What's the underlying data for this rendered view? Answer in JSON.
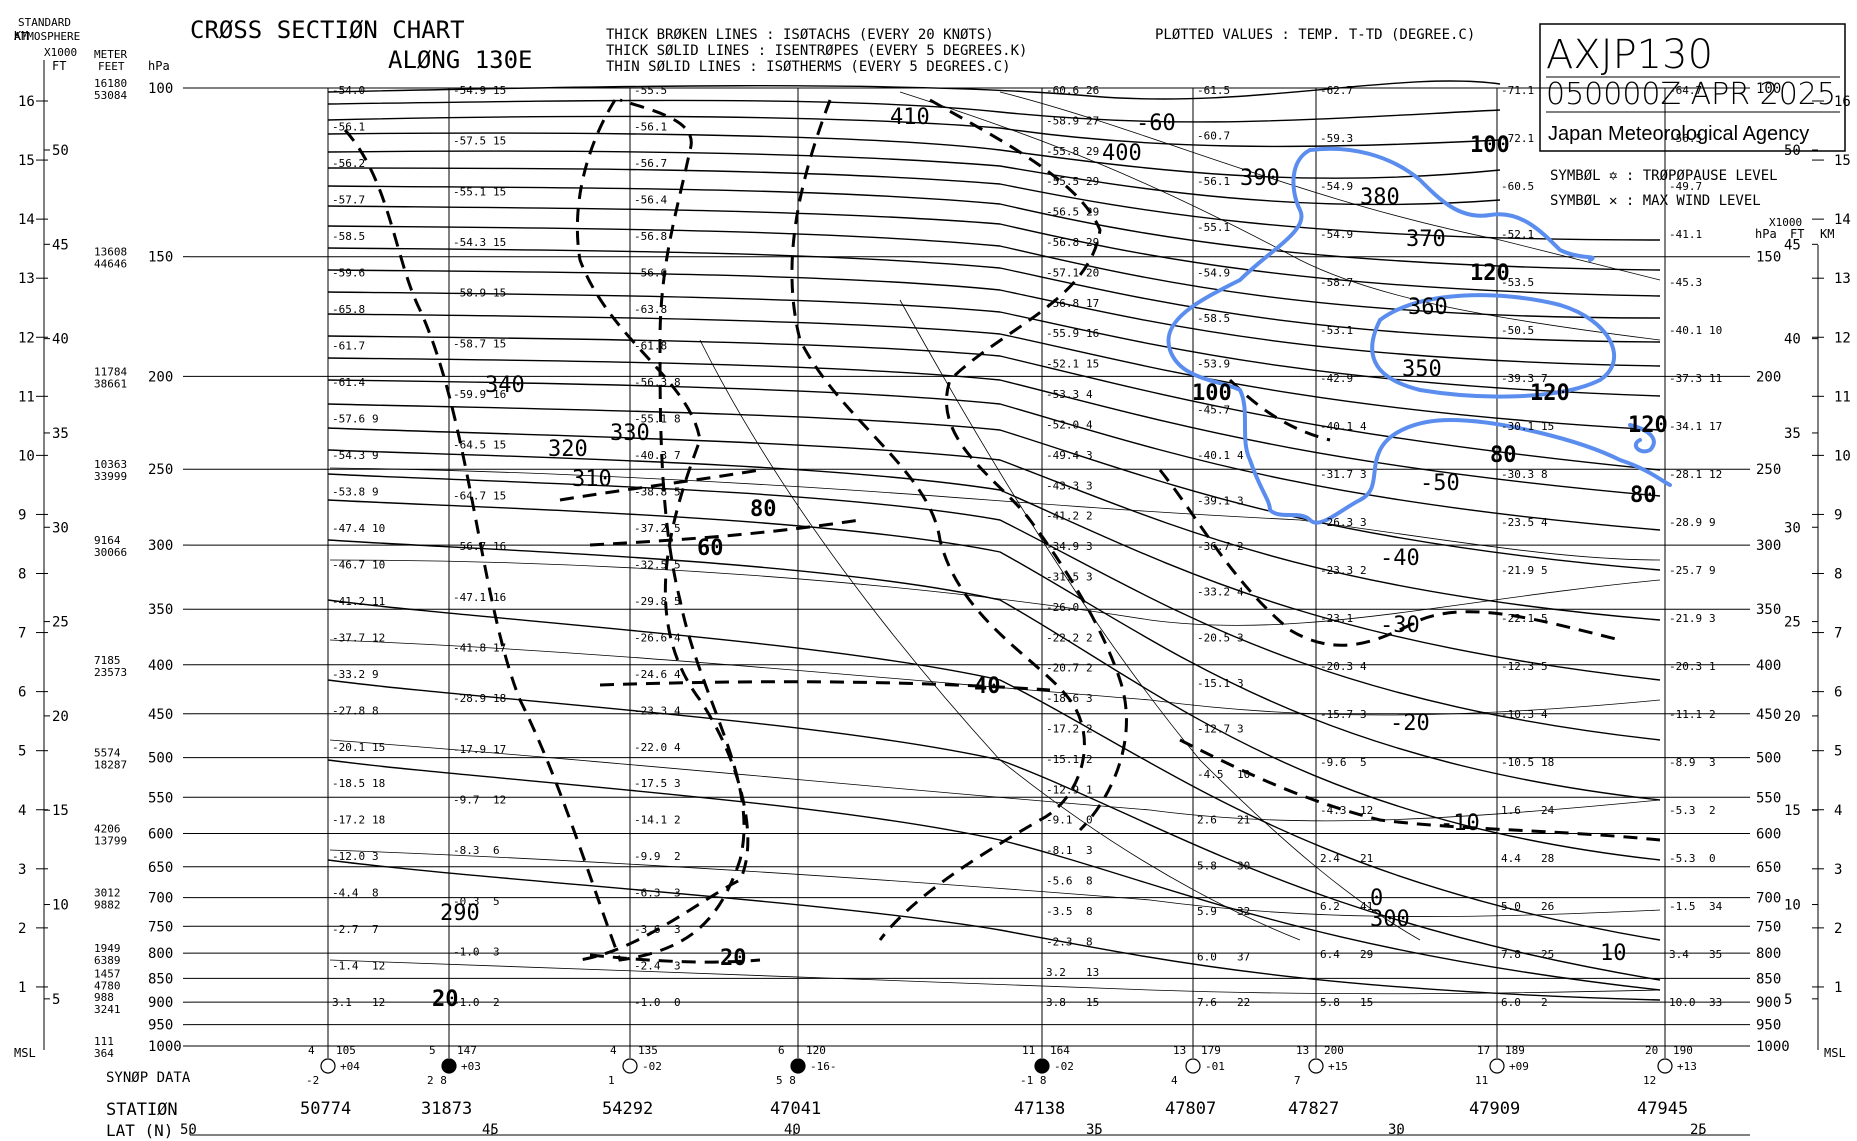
{
  "header": {
    "atmosphere_label": "STANDARD\nATMOSPHERE",
    "atmosphere_l1": "STANDARD",
    "atmosphere_l2": "ATMOSPHERE",
    "title_line1": "CRØSS SECTIØN CHART",
    "title_line2": "ALØNG 130E",
    "legend_lines": [
      "THICK BRØKEN LINES : ISØTACHS    (EVERY 20 KNØTS)",
      "THICK SØLID  LINES : ISENTRØPES (EVERY  5 DEGREES.K)",
      "THIN  SØLID  LINES : ISØTHERMS  (EVERY  5 DEGREES.C)"
    ],
    "plotted_values": "PLØTTED VALUES : TEMP. T-TD (DEGREE.C)",
    "chart_id": "AXJP130",
    "valid_time": "050000Z APR 2025",
    "agency": "Japan Meteorological Agency",
    "symbol_tropopause": "SYMBØL ✡ : TRØPØPAUSE LEVEL",
    "symbol_maxwind": "SYMBØL ✕ : MAX WIND   LEVEL"
  },
  "axes": {
    "km_label": "KM",
    "ft_label": "FT",
    "x1000_label": "X1000",
    "meter_label": "METER",
    "feet_label": "FEET",
    "hpa_label": "hPa",
    "msl_label": "MSL",
    "synop_label": "SYNØP DATA",
    "station_label": "STATIØN",
    "lat_label": "LAT (N)"
  },
  "chart_data": {
    "type": "table",
    "pressure_levels_hpa": [
      100,
      150,
      200,
      250,
      300,
      350,
      400,
      450,
      500,
      550,
      600,
      650,
      700,
      750,
      800,
      850,
      900,
      950,
      1000
    ],
    "height_m": {
      "100": 16180,
      "150": 13608,
      "200": 11784,
      "250": 10363,
      "300": 9164,
      "400": 7185,
      "500": 5574,
      "600": 4206,
      "700": 3012,
      "800": 1949,
      "850": 1457,
      "900": 988,
      "1000": 111
    },
    "height_ft": {
      "100": 53084,
      "150": 44646,
      "200": 38661,
      "250": 33999,
      "300": 30066,
      "400": 23573,
      "500": 18287,
      "600": 13799,
      "700": 9882,
      "800": 6389,
      "850": 4780,
      "900": 3241,
      "1000": 364
    },
    "km_ticks": [
      "16",
      "15",
      "14",
      "13",
      "12",
      "11",
      "10",
      "9",
      "8",
      "7",
      "6",
      "5",
      "4",
      "3",
      "2",
      "1",
      "MSL"
    ],
    "ft_ticks": [
      "50",
      "45",
      "40",
      "35",
      "30",
      "25",
      "20",
      "15",
      "10",
      "5"
    ],
    "stations": [
      {
        "id": "50774",
        "synop_top": "4",
        "synop_val": "105",
        "synop_tend": "+04",
        "synop_bot": "-2"
      },
      {
        "id": "31873",
        "synop_top": "5",
        "synop_val": "147",
        "synop_tend": "+03",
        "synop_bot": "2   8"
      },
      {
        "id": "54292",
        "synop_top": "4",
        "synop_val": "135",
        "synop_tend": "-02",
        "synop_bot": "1"
      },
      {
        "id": "47041",
        "synop_top": "6",
        "synop_val": "120",
        "synop_tend": "-16-",
        "synop_bot": "5   8"
      },
      {
        "id": "47138",
        "synop_top": "11",
        "synop_val": "164",
        "synop_tend": "-02",
        "synop_bot": "-1   8"
      },
      {
        "id": "47807",
        "synop_top": "13",
        "synop_val": "179",
        "synop_tend": "-01",
        "synop_bot": "4"
      },
      {
        "id": "47827",
        "synop_top": "13",
        "synop_val": "200",
        "synop_tend": "+15",
        "synop_bot": "7"
      },
      {
        "id": "47909",
        "synop_top": "17",
        "synop_val": "189",
        "synop_tend": "+09",
        "synop_bot": "11"
      },
      {
        "id": "47945",
        "synop_top": "20",
        "synop_val": "190",
        "synop_tend": "+13",
        "synop_bot": "12"
      }
    ],
    "latitudes": [
      "50",
      "45",
      "40",
      "35",
      "30",
      "25"
    ],
    "isentrope_labels": [
      "410",
      "400",
      "390",
      "380",
      "370",
      "360",
      "350",
      "340",
      "330",
      "320",
      "310",
      "300",
      "290"
    ],
    "isotach_labels": [
      "100",
      "120",
      "120",
      "100",
      "120",
      "80",
      "80",
      "80",
      "60",
      "40",
      "20",
      "20",
      "40",
      "-"
    ],
    "isotherm_labels": [
      "-60",
      "-50",
      "-40",
      "-30",
      "-20",
      "-10",
      "0",
      "10"
    ],
    "plotted": {
      "50774": [
        [
          "-54.0",
          ""
        ],
        [
          "-56.1",
          ""
        ],
        [
          "-56.2",
          ""
        ],
        [
          "-57.7",
          ""
        ],
        [
          "-58.5",
          ""
        ],
        [
          "-59.6",
          ""
        ],
        [
          "-65.8",
          ""
        ],
        [
          "-61.7",
          ""
        ],
        [
          "-61.4",
          ""
        ],
        [
          "-57.6",
          "9"
        ],
        [
          "-54.3",
          "9"
        ],
        [
          "-53.8",
          "9"
        ],
        [
          "-47.4",
          "10"
        ],
        [
          "-46.7",
          "10"
        ],
        [
          "-41.2",
          "11"
        ],
        [
          "-37.7",
          "12"
        ],
        [
          "-33.2",
          "9"
        ],
        [
          "-27.8",
          "8"
        ],
        [
          "-20.1",
          "15"
        ],
        [
          "-18.5",
          "18"
        ],
        [
          "-17.2",
          "18"
        ],
        [
          "-12.0",
          "3"
        ],
        [
          "-4.4",
          "8"
        ],
        [
          "-2.7",
          "7"
        ],
        [
          "-1.4",
          "12"
        ],
        [
          "3.1",
          "12"
        ]
      ],
      "31873": [
        [
          "-54.9",
          "15"
        ],
        [
          "-57.5",
          "15"
        ],
        [
          "-55.1",
          "15"
        ],
        [
          "-54.3",
          "15"
        ],
        [
          "-58.9",
          "15"
        ],
        [
          "-58.7",
          "15"
        ],
        [
          "-59.9",
          "16"
        ],
        [
          "-64.5",
          "15"
        ],
        [
          "-64.7",
          "15"
        ],
        [
          "-56.7",
          "16"
        ],
        [
          "-47.1",
          "16"
        ],
        [
          "-41.8",
          "17"
        ],
        [
          "-28.9",
          "18"
        ],
        [
          "-17.9",
          "17"
        ],
        [
          "-9.7",
          "12"
        ],
        [
          "-8.3",
          "6"
        ],
        [
          "-0.3",
          "5"
        ],
        [
          "-1.0",
          "3"
        ],
        [
          "-1.0",
          "2"
        ]
      ],
      "54292": [
        [
          "-55.5",
          ""
        ],
        [
          "-56.1",
          ""
        ],
        [
          "-56.7",
          ""
        ],
        [
          "-56.4",
          ""
        ],
        [
          "-56.8",
          ""
        ],
        [
          "-56.6",
          ""
        ],
        [
          "-63.8",
          ""
        ],
        [
          "-61.8",
          ""
        ],
        [
          "-56.3",
          "8"
        ],
        [
          "-55.1",
          "8"
        ],
        [
          "-40.3",
          "7"
        ],
        [
          "-38.8",
          "5"
        ],
        [
          "-37.2",
          "5"
        ],
        [
          "-32.5",
          "5"
        ],
        [
          "-29.8",
          "5"
        ],
        [
          "-26.6",
          "4"
        ],
        [
          "-24.6",
          "4"
        ],
        [
          "-23.3",
          "4"
        ],
        [
          "-22.0",
          "4"
        ],
        [
          "-17.5",
          "3"
        ],
        [
          "-14.1",
          "2"
        ],
        [
          "-9.9",
          "2"
        ],
        [
          "-6.3",
          "3"
        ],
        [
          "-3.6",
          "3"
        ],
        [
          "-2.4",
          "3"
        ],
        [
          "-1.0",
          "0"
        ]
      ],
      "47138": [
        [
          "-60.6",
          "26"
        ],
        [
          "-58.9",
          "27"
        ],
        [
          "-55.8",
          "29"
        ],
        [
          "-55.5",
          "29"
        ],
        [
          "-56.5",
          "29"
        ],
        [
          "-56.8",
          "29"
        ],
        [
          "-57.1",
          "20"
        ],
        [
          "-56.8",
          "17"
        ],
        [
          "-55.9",
          "16"
        ],
        [
          "-52.1",
          "15"
        ],
        [
          "-53.3",
          "4"
        ],
        [
          "-52.0",
          "4"
        ],
        [
          "-49.4",
          "3"
        ],
        [
          "-43.3",
          "3"
        ],
        [
          "-41.2",
          "2"
        ],
        [
          "-34.9",
          "3"
        ],
        [
          "-31.5",
          "3"
        ],
        [
          "-26.0",
          ""
        ],
        [
          "-22.2",
          "2"
        ],
        [
          "-20.7",
          "2"
        ],
        [
          "-18.6",
          "3"
        ],
        [
          "-17.2",
          "2"
        ],
        [
          "-15.1",
          "2"
        ],
        [
          "-12.9",
          "1"
        ],
        [
          "-9.1",
          "0"
        ],
        [
          "-8.1",
          "3"
        ],
        [
          "-5.6",
          "8"
        ],
        [
          "-3.5",
          "8"
        ],
        [
          "-2.3",
          "8"
        ],
        [
          "3.2",
          "13"
        ],
        [
          "3.8",
          "15"
        ]
      ],
      "47807": [
        [
          "-61.5",
          ""
        ],
        [
          "-60.7",
          ""
        ],
        [
          "-56.1",
          ""
        ],
        [
          "-55.1",
          ""
        ],
        [
          "-54.9",
          ""
        ],
        [
          "-58.5",
          ""
        ],
        [
          "-53.9",
          ""
        ],
        [
          "-45.7",
          ""
        ],
        [
          "-40.1",
          "4"
        ],
        [
          "-39.1",
          "3"
        ],
        [
          "-36.7",
          "2"
        ],
        [
          "-33.2",
          "4"
        ],
        [
          "-20.5",
          "3"
        ],
        [
          "-15.1",
          "3"
        ],
        [
          "-12.7",
          "3"
        ],
        [
          "-4.5",
          "10"
        ],
        [
          "2.6",
          "21"
        ],
        [
          "5.8",
          "30"
        ],
        [
          "5.9",
          "32"
        ],
        [
          "6.0",
          "37"
        ],
        [
          "7.6",
          "22"
        ]
      ],
      "47827": [
        [
          "-62.7",
          ""
        ],
        [
          "-59.3",
          ""
        ],
        [
          "-54.9",
          ""
        ],
        [
          "-54.9",
          ""
        ],
        [
          "-58.7",
          ""
        ],
        [
          "-53.1",
          ""
        ],
        [
          "-42.9",
          ""
        ],
        [
          "-40.1",
          "4"
        ],
        [
          "-31.7",
          "3"
        ],
        [
          "-26.3",
          "3"
        ],
        [
          "-23.3",
          "2"
        ],
        [
          "-23.1",
          ""
        ],
        [
          "-20.3",
          "4"
        ],
        [
          "-15.7",
          "3"
        ],
        [
          "-9.6",
          "5"
        ],
        [
          "-4.3",
          "12"
        ],
        [
          "2.4",
          "21"
        ],
        [
          "6.2",
          "41"
        ],
        [
          "6.4",
          "29"
        ],
        [
          "5.8",
          "15"
        ]
      ],
      "47909": [
        [
          "-71.1",
          ""
        ],
        [
          "-72.1",
          ""
        ],
        [
          "-60.5",
          ""
        ],
        [
          "-52.1",
          ""
        ],
        [
          "-53.5",
          ""
        ],
        [
          "-50.5",
          ""
        ],
        [
          "-39.3",
          "7"
        ],
        [
          "-30.1",
          "15"
        ],
        [
          "-30.3",
          "8"
        ],
        [
          "-23.5",
          "4"
        ],
        [
          "-21.9",
          "5"
        ],
        [
          "-22.1",
          "5"
        ],
        [
          "-12.3",
          "5"
        ],
        [
          "-10.3",
          "4"
        ],
        [
          "-10.5",
          "18"
        ],
        [
          "1.6",
          "24"
        ],
        [
          "4.4",
          "28"
        ],
        [
          "5.0",
          "26"
        ],
        [
          "7.8",
          "25"
        ],
        [
          "6.0",
          "2"
        ]
      ],
      "47945": [
        [
          "-64.7",
          ""
        ],
        [
          "-56.5",
          ""
        ],
        [
          "-49.7",
          ""
        ],
        [
          "-41.1",
          ""
        ],
        [
          "-45.3",
          ""
        ],
        [
          "-40.1",
          "10"
        ],
        [
          "-37.3",
          "11"
        ],
        [
          "-34.1",
          "17"
        ],
        [
          "-28.1",
          "12"
        ],
        [
          "-28.9",
          "9"
        ],
        [
          "-25.7",
          "9"
        ],
        [
          "-21.9",
          "3"
        ],
        [
          "-20.3",
          "1"
        ],
        [
          "-11.1",
          "2"
        ],
        [
          "-8.9",
          "3"
        ],
        [
          "-5.3",
          "2"
        ],
        [
          "-5.3",
          "0"
        ],
        [
          "-1.5",
          "34"
        ],
        [
          "3.4",
          "35"
        ],
        [
          "10.0",
          "33"
        ]
      ]
    }
  },
  "colors": {
    "annotation": "#5b8def",
    "ink": "#000000"
  }
}
